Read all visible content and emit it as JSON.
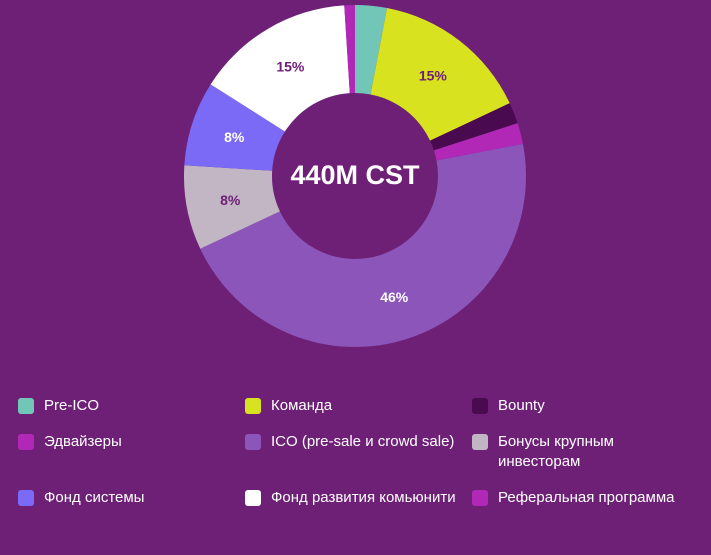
{
  "chart_data": {
    "type": "pie",
    "center_label": "440M CST",
    "categories": [
      "Pre-ICO",
      "Команда",
      "Bounty",
      "Эдвайзеры",
      "ICO (pre-sale и crowd sale)",
      "Бонусы крупным инвесторам",
      "Фонд системы",
      "Фонд развития комьюнити",
      "Реферальная программа"
    ],
    "values": [
      3,
      15,
      2,
      2,
      46,
      8,
      8,
      15,
      1
    ],
    "slice_labels": [
      "",
      "15%",
      "",
      "",
      "46%",
      "8%",
      "8%",
      "15%",
      ""
    ],
    "colors": [
      "#72c6b8",
      "#d9e21f",
      "#4a0a4f",
      "#b028b5",
      "#8c55b9",
      "#c2b6c4",
      "#7a6af6",
      "#ffffff",
      "#b028b5"
    ],
    "label_colors": [
      "#ffffff",
      "#6e2077",
      "#ffffff",
      "#ffffff",
      "#ffffff",
      "#6e2077",
      "#ffffff",
      "#6e2077",
      "#ffffff"
    ],
    "legend_placement": "bottom"
  }
}
